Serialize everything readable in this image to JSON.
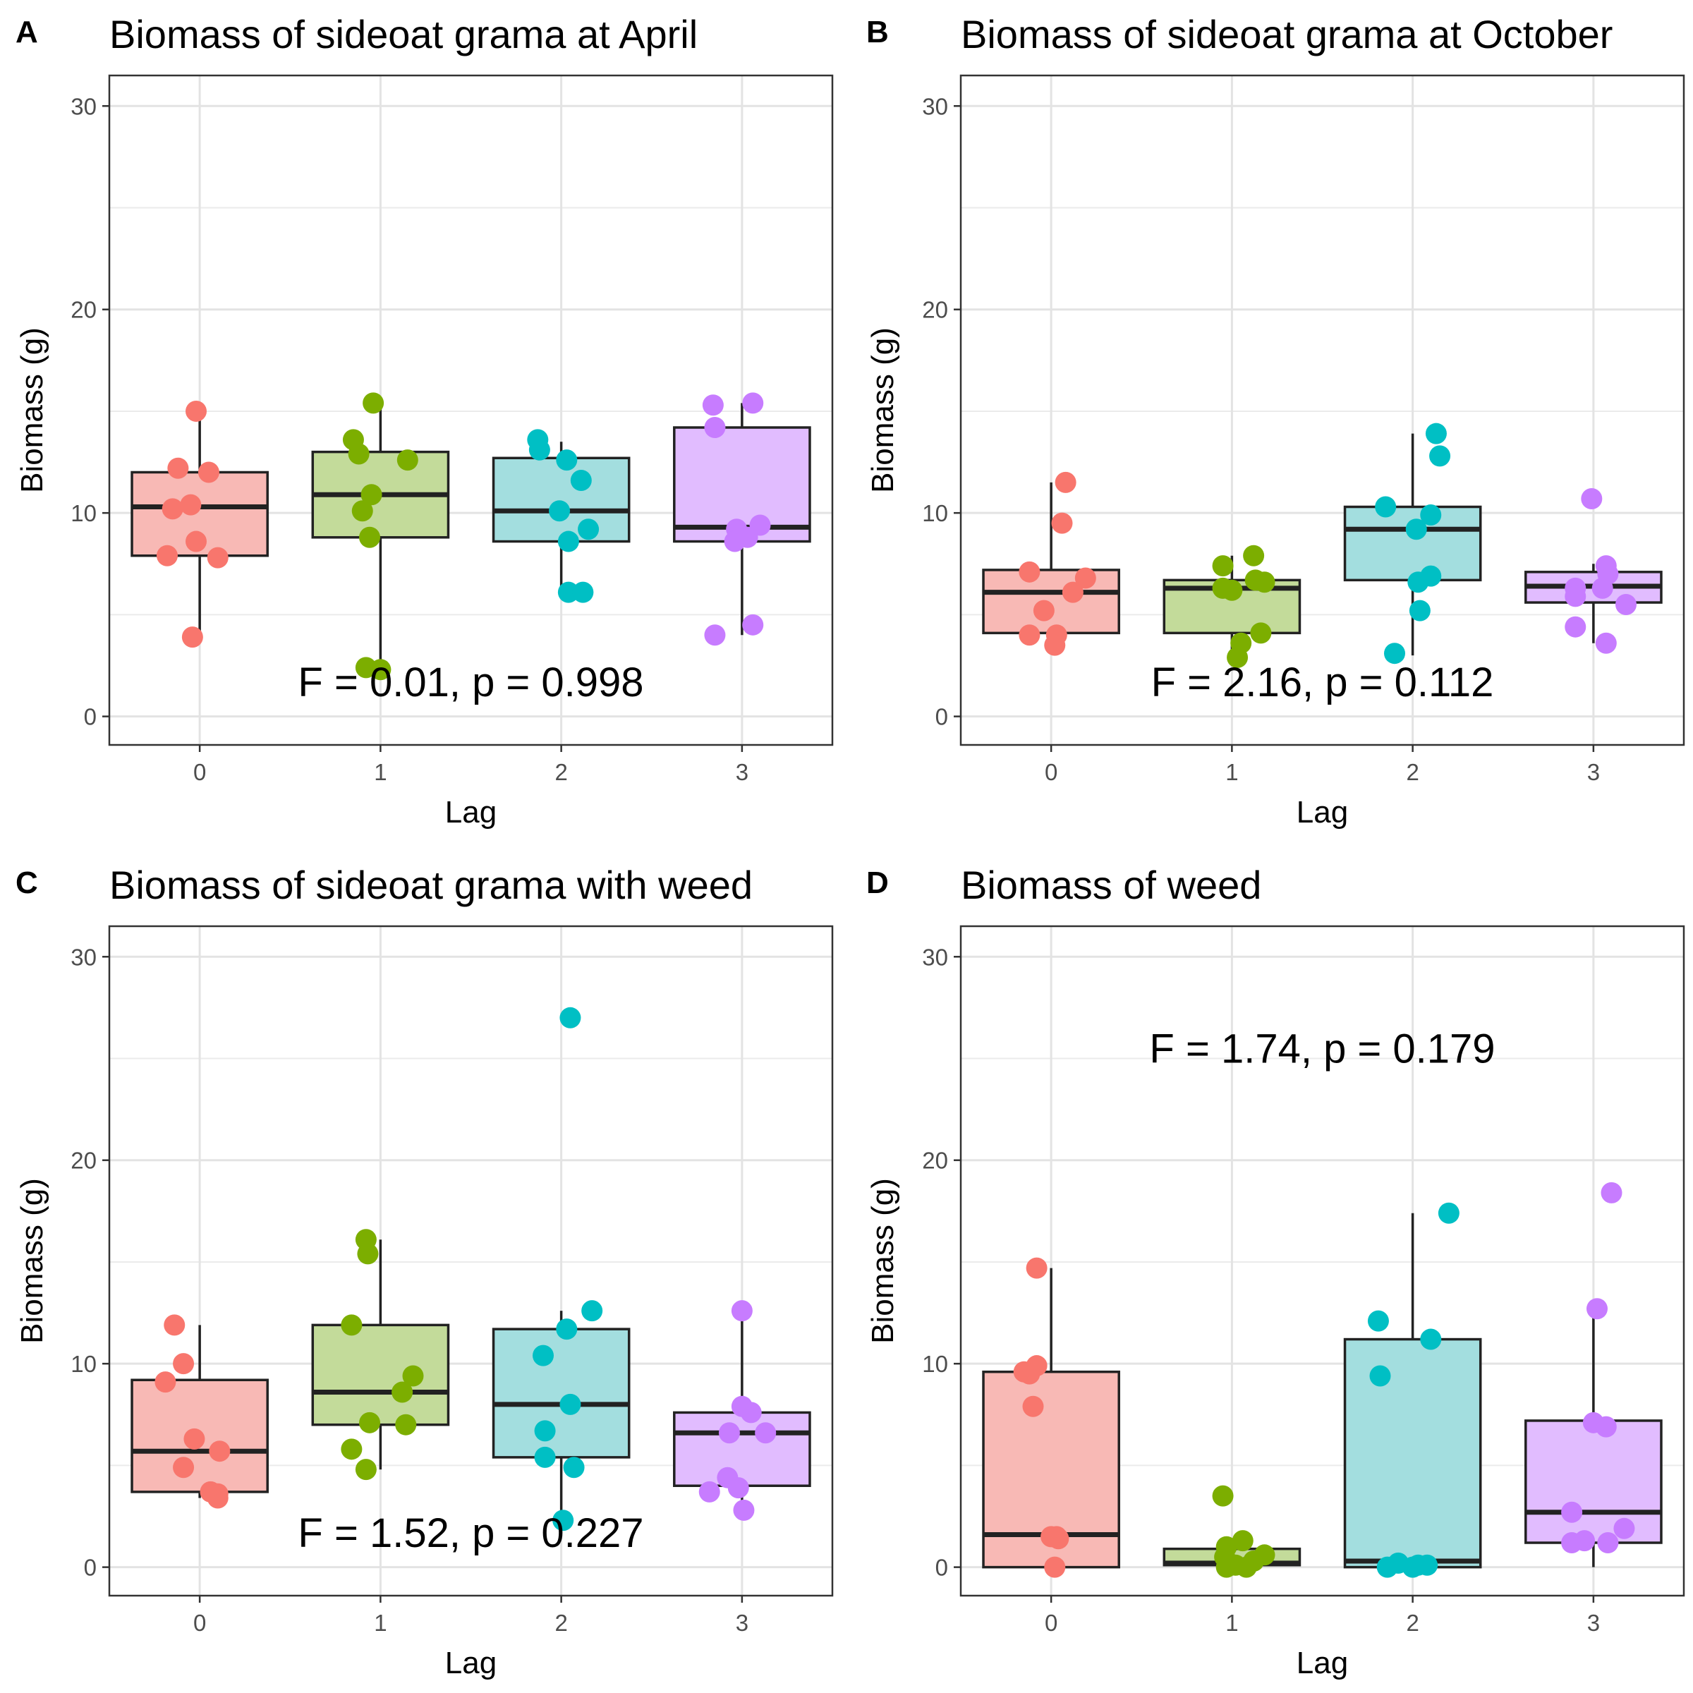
{
  "chart_data": [
    {
      "type": "box",
      "panel_label": "A",
      "title": "Biomass of sideoat grama at April",
      "xlabel": "Lag",
      "ylabel": "Biomass (g)",
      "categories": [
        "0",
        "1",
        "2",
        "3"
      ],
      "yticks": [
        "0",
        "10",
        "20",
        "30"
      ],
      "ylim": [
        -1.4,
        31.5
      ],
      "grid": true,
      "annotation": {
        "text": "F = 0.01, p = 0.998",
        "x": 1.5,
        "y": 1.0
      },
      "colors": [
        "#F8766D",
        "#7CAE00",
        "#00BFC4",
        "#C77CFF"
      ],
      "fills": [
        "#F8B9B5",
        "#C3DB9A",
        "#A3DEDF",
        "#E1BCFF"
      ],
      "boxes": [
        {
          "category": "0",
          "q1": 7.9,
          "median": 10.3,
          "q3": 12.0,
          "whisker_low": 3.9,
          "whisker_high": 14.9
        },
        {
          "category": "1",
          "q1": 8.8,
          "median": 10.9,
          "q3": 13.0,
          "whisker_low": 2.3,
          "whisker_high": 15.4
        },
        {
          "category": "2",
          "q1": 8.6,
          "median": 10.1,
          "q3": 12.7,
          "whisker_low": 6.0,
          "whisker_high": 13.5
        },
        {
          "category": "3",
          "q1": 8.6,
          "median": 9.3,
          "q3": 14.2,
          "whisker_low": 4.0,
          "whisker_high": 15.4
        }
      ],
      "points": [
        [
          [
            -0.18,
            7.9
          ],
          [
            -0.15,
            10.2
          ],
          [
            -0.12,
            12.2
          ],
          [
            -0.05,
            10.4
          ],
          [
            -0.02,
            8.6
          ],
          [
            -0.02,
            15.0
          ],
          [
            0.05,
            12.0
          ],
          [
            0.1,
            7.8
          ],
          [
            -0.04,
            3.9
          ]
        ],
        [
          [
            -0.15,
            13.6
          ],
          [
            -0.12,
            12.9
          ],
          [
            -0.1,
            10.1
          ],
          [
            -0.06,
            8.8
          ],
          [
            -0.05,
            10.9
          ],
          [
            -0.04,
            15.4
          ],
          [
            0.15,
            12.6
          ],
          [
            -0.08,
            2.4
          ],
          [
            0.0,
            2.3
          ]
        ],
        [
          [
            -0.13,
            13.6
          ],
          [
            -0.12,
            13.1
          ],
          [
            0.03,
            12.6
          ],
          [
            -0.01,
            10.1
          ],
          [
            0.04,
            8.6
          ],
          [
            0.11,
            11.6
          ],
          [
            0.15,
            9.2
          ],
          [
            0.04,
            6.1
          ],
          [
            0.12,
            6.1
          ]
        ],
        [
          [
            -0.16,
            15.3
          ],
          [
            -0.15,
            14.2
          ],
          [
            0.06,
            15.4
          ],
          [
            -0.03,
            9.2
          ],
          [
            -0.04,
            8.6
          ],
          [
            0.03,
            8.8
          ],
          [
            0.1,
            9.4
          ],
          [
            -0.15,
            4.0
          ],
          [
            0.06,
            4.5
          ]
        ]
      ]
    },
    {
      "type": "box",
      "panel_label": "B",
      "title": "Biomass of sideoat grama at October",
      "xlabel": "Lag",
      "ylabel": "Biomass (g)",
      "categories": [
        "0",
        "1",
        "2",
        "3"
      ],
      "yticks": [
        "0",
        "10",
        "20",
        "30"
      ],
      "ylim": [
        -1.4,
        31.5
      ],
      "grid": true,
      "annotation": {
        "text": "F = 2.16, p = 0.112",
        "x": 1.5,
        "y": 1.0
      },
      "colors": [
        "#F8766D",
        "#7CAE00",
        "#00BFC4",
        "#C77CFF"
      ],
      "fills": [
        "#F8B9B5",
        "#C3DB9A",
        "#A3DEDF",
        "#E1BCFF"
      ],
      "boxes": [
        {
          "category": "0",
          "q1": 4.1,
          "median": 6.1,
          "q3": 7.2,
          "whisker_low": 3.5,
          "whisker_high": 11.5
        },
        {
          "category": "1",
          "q1": 4.1,
          "median": 6.3,
          "q3": 6.7,
          "whisker_low": 2.9,
          "whisker_high": 7.9
        },
        {
          "category": "2",
          "q1": 6.7,
          "median": 9.2,
          "q3": 10.3,
          "whisker_low": 3.0,
          "whisker_high": 13.9
        },
        {
          "category": "3",
          "q1": 5.6,
          "median": 6.4,
          "q3": 7.1,
          "whisker_low": 3.6,
          "whisker_high": 7.5
        }
      ],
      "points": [
        [
          [
            -0.12,
            7.1
          ],
          [
            -0.04,
            5.2
          ],
          [
            -0.12,
            4.0
          ],
          [
            0.03,
            4.0
          ],
          [
            0.02,
            3.5
          ],
          [
            0.06,
            9.5
          ],
          [
            0.08,
            11.5
          ],
          [
            0.12,
            6.1
          ],
          [
            0.19,
            6.8
          ]
        ],
        [
          [
            -0.05,
            7.4
          ],
          [
            -0.05,
            6.3
          ],
          [
            0.0,
            6.2
          ],
          [
            0.12,
            7.9
          ],
          [
            0.13,
            6.7
          ],
          [
            0.18,
            6.6
          ],
          [
            0.16,
            4.1
          ],
          [
            0.05,
            3.6
          ],
          [
            0.03,
            2.9
          ]
        ],
        [
          [
            -0.15,
            10.3
          ],
          [
            0.02,
            9.2
          ],
          [
            0.03,
            6.6
          ],
          [
            0.04,
            5.2
          ],
          [
            -0.1,
            3.1
          ],
          [
            0.1,
            9.9
          ],
          [
            0.1,
            6.9
          ],
          [
            0.13,
            13.9
          ],
          [
            0.15,
            12.8
          ]
        ],
        [
          [
            -0.1,
            6.3
          ],
          [
            -0.1,
            5.9
          ],
          [
            -0.1,
            4.4
          ],
          [
            -0.01,
            10.7
          ],
          [
            0.05,
            6.3
          ],
          [
            0.07,
            7.4
          ],
          [
            0.08,
            7.0
          ],
          [
            0.18,
            5.5
          ],
          [
            0.07,
            3.6
          ]
        ]
      ]
    },
    {
      "type": "box",
      "panel_label": "C",
      "title": "Biomass of sideoat grama with weed",
      "xlabel": "Lag",
      "ylabel": "Biomass (g)",
      "categories": [
        "0",
        "1",
        "2",
        "3"
      ],
      "yticks": [
        "0",
        "10",
        "20",
        "30"
      ],
      "ylim": [
        -1.4,
        31.5
      ],
      "grid": true,
      "annotation": {
        "text": "F = 1.52, p = 0.227",
        "x": 1.5,
        "y": 1.0
      },
      "colors": [
        "#F8766D",
        "#7CAE00",
        "#00BFC4",
        "#C77CFF"
      ],
      "fills": [
        "#F8B9B5",
        "#C3DB9A",
        "#A3DEDF",
        "#E1BCFF"
      ],
      "boxes": [
        {
          "category": "0",
          "q1": 3.7,
          "median": 5.7,
          "q3": 9.2,
          "whisker_low": 3.4,
          "whisker_high": 11.9
        },
        {
          "category": "1",
          "q1": 7.0,
          "median": 8.6,
          "q3": 11.9,
          "whisker_low": 4.8,
          "whisker_high": 16.1
        },
        {
          "category": "2",
          "q1": 5.4,
          "median": 8.0,
          "q3": 11.7,
          "whisker_low": 2.3,
          "whisker_high": 12.6
        },
        {
          "category": "3",
          "q1": 4.0,
          "median": 6.6,
          "q3": 7.6,
          "whisker_low": 2.8,
          "whisker_high": 12.6
        }
      ],
      "points": [
        [
          [
            -0.19,
            9.1
          ],
          [
            -0.14,
            11.9
          ],
          [
            -0.09,
            10.0
          ],
          [
            -0.03,
            6.3
          ],
          [
            0.11,
            5.7
          ],
          [
            -0.09,
            4.9
          ],
          [
            0.1,
            3.6
          ],
          [
            0.1,
            3.4
          ],
          [
            0.06,
            3.7
          ]
        ],
        [
          [
            -0.16,
            11.9
          ],
          [
            -0.08,
            16.1
          ],
          [
            -0.07,
            15.4
          ],
          [
            -0.16,
            5.8
          ],
          [
            -0.08,
            4.8
          ],
          [
            -0.06,
            7.1
          ],
          [
            0.12,
            8.6
          ],
          [
            0.18,
            9.4
          ],
          [
            0.14,
            7.0
          ]
        ],
        [
          [
            -0.1,
            10.4
          ],
          [
            0.03,
            11.7
          ],
          [
            0.17,
            12.6
          ],
          [
            0.05,
            27.0
          ],
          [
            -0.09,
            6.7
          ],
          [
            -0.09,
            5.4
          ],
          [
            0.05,
            8.0
          ],
          [
            0.07,
            4.9
          ],
          [
            0.01,
            2.3
          ]
        ],
        [
          [
            -0.18,
            3.7
          ],
          [
            -0.08,
            4.4
          ],
          [
            -0.07,
            6.6
          ],
          [
            0.0,
            12.6
          ],
          [
            0.0,
            7.9
          ],
          [
            0.05,
            7.6
          ],
          [
            0.13,
            6.6
          ],
          [
            -0.02,
            3.9
          ],
          [
            0.01,
            2.8
          ]
        ]
      ]
    },
    {
      "type": "box",
      "panel_label": "D",
      "title": "Biomass of weed",
      "xlabel": "Lag",
      "ylabel": "Biomass (g)",
      "categories": [
        "0",
        "1",
        "2",
        "3"
      ],
      "yticks": [
        "0",
        "10",
        "20",
        "30"
      ],
      "ylim": [
        -1.4,
        31.5
      ],
      "grid": true,
      "annotation": {
        "text": "F = 1.74, p = 0.179",
        "x": 1.5,
        "y": 24.8
      },
      "colors": [
        "#F8766D",
        "#7CAE00",
        "#00BFC4",
        "#C77CFF"
      ],
      "fills": [
        "#F8B9B5",
        "#C3DB9A",
        "#A3DEDF",
        "#E1BCFF"
      ],
      "boxes": [
        {
          "category": "0",
          "q1": 0.0,
          "median": 1.6,
          "q3": 9.6,
          "whisker_low": 0.0,
          "whisker_high": 14.7
        },
        {
          "category": "1",
          "q1": 0.1,
          "median": 0.2,
          "q3": 0.9,
          "whisker_low": 0.0,
          "whisker_high": 0.9
        },
        {
          "category": "2",
          "q1": 0.0,
          "median": 0.3,
          "q3": 11.2,
          "whisker_low": 0.0,
          "whisker_high": 17.4
        },
        {
          "category": "3",
          "q1": 1.2,
          "median": 2.7,
          "q3": 7.2,
          "whisker_low": 0.0,
          "whisker_high": 12.7
        }
      ],
      "points": [
        [
          [
            -0.15,
            9.6
          ],
          [
            -0.08,
            9.9
          ],
          [
            -0.1,
            7.9
          ],
          [
            -0.08,
            14.7
          ],
          [
            0.03,
            1.5
          ],
          [
            0.04,
            1.4
          ],
          [
            0.02,
            0.0
          ],
          [
            0.0,
            1.5
          ],
          [
            -0.12,
            9.5
          ]
        ],
        [
          [
            -0.03,
            0.0
          ],
          [
            -0.03,
            1.0
          ],
          [
            -0.04,
            0.5
          ],
          [
            -0.05,
            3.5
          ],
          [
            0.08,
            0.0
          ],
          [
            0.12,
            0.3
          ],
          [
            0.18,
            0.6
          ],
          [
            0.02,
            0.1
          ],
          [
            0.06,
            1.3
          ]
        ],
        [
          [
            -0.19,
            12.1
          ],
          [
            -0.18,
            9.4
          ],
          [
            0.1,
            11.2
          ],
          [
            0.2,
            17.4
          ],
          [
            -0.14,
            0.0
          ],
          [
            -0.08,
            0.2
          ],
          [
            0.0,
            0.0
          ],
          [
            0.08,
            0.1
          ],
          [
            0.03,
            0.1
          ]
        ],
        [
          [
            -0.12,
            2.7
          ],
          [
            -0.12,
            1.2
          ],
          [
            0.0,
            7.1
          ],
          [
            0.07,
            6.9
          ],
          [
            0.02,
            12.7
          ],
          [
            0.1,
            18.4
          ],
          [
            0.17,
            1.9
          ],
          [
            -0.05,
            1.3
          ],
          [
            0.08,
            1.2
          ]
        ]
      ]
    }
  ]
}
